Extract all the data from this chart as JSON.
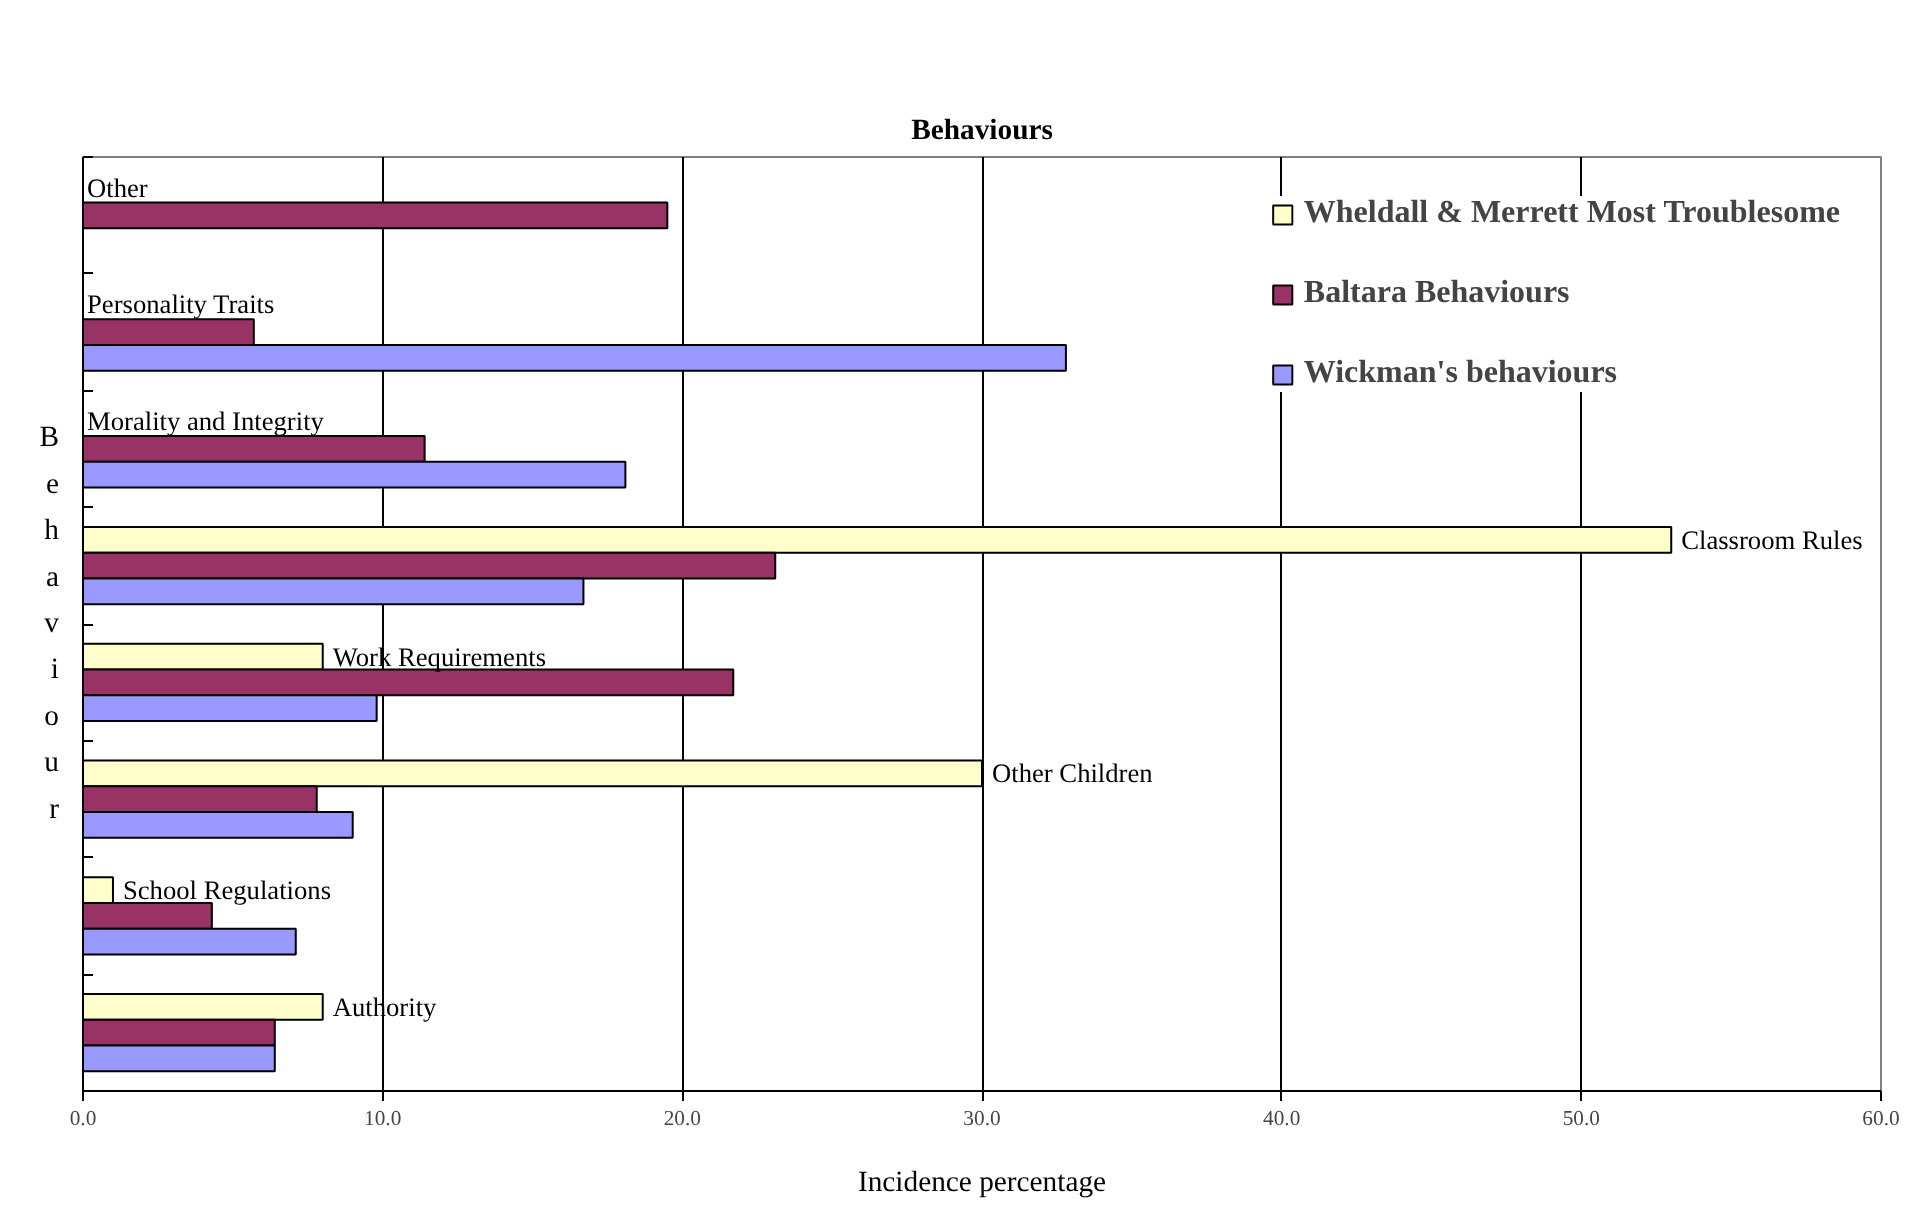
{
  "chart_data": {
    "type": "bar",
    "orientation": "horizontal",
    "title": "Behaviours",
    "xlabel": "Incidence percentage",
    "ylabel": "Behaviour",
    "categories": [
      "Other",
      "Personality Traits",
      "Morality and Integrity",
      "Classroom Rules",
      "Work Requirements",
      "Other Children",
      "School Regulations",
      "Authority"
    ],
    "series": [
      {
        "name": "Wheldall & Merrett Most Troublesome",
        "color": "#ffffcc",
        "values": [
          null,
          null,
          null,
          53.0,
          8.0,
          30.0,
          1.0,
          8.0
        ]
      },
      {
        "name": "Baltara Behaviours",
        "color": "#993366",
        "values": [
          19.5,
          5.7,
          11.4,
          23.1,
          21.7,
          7.8,
          4.3,
          6.4
        ]
      },
      {
        "name": "Wickman's behaviours",
        "color": "#9999ff",
        "values": [
          null,
          32.8,
          18.1,
          16.7,
          9.8,
          9.0,
          7.1,
          6.4
        ]
      }
    ],
    "xlim": [
      0,
      60
    ],
    "xticks": [
      {
        "value": 0,
        "label": "0.0"
      },
      {
        "value": 10,
        "label": "10.0"
      },
      {
        "value": 20,
        "label": "20.0"
      },
      {
        "value": 30,
        "label": "30.0"
      },
      {
        "value": 40,
        "label": "40.0"
      },
      {
        "value": 50,
        "label": "50.0"
      },
      {
        "value": 60,
        "label": "60.0"
      }
    ],
    "grid": "x",
    "legend": "top right",
    "tick_labels": "x"
  }
}
